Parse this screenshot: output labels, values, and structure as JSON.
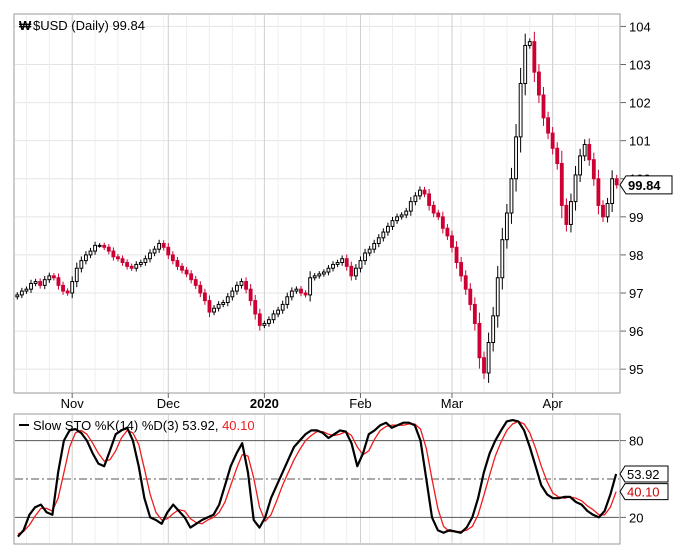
{
  "chart_data": [
    {
      "type": "candlestick",
      "symbol_label": "$USD (Daily) 99.84",
      "last_value": 99.84,
      "last_value_label": "99.84",
      "ylim": [
        94.4,
        104.3
      ],
      "y_ticks": [
        95,
        96,
        97,
        98,
        99,
        100,
        101,
        102,
        103,
        104
      ],
      "x_tick_labels": [
        "Nov",
        "Dec",
        "2020",
        "Feb",
        "Mar",
        "Apr"
      ],
      "x_tick_day_index": [
        12,
        33,
        54,
        75,
        95,
        117
      ],
      "up_color": "#000000",
      "down_color": "#cc0033",
      "closes": [
        96.95,
        97.05,
        97.1,
        97.25,
        97.3,
        97.2,
        97.35,
        97.45,
        97.4,
        97.2,
        97.05,
        97.0,
        97.3,
        97.65,
        97.85,
        98.0,
        98.1,
        98.25,
        98.25,
        98.2,
        98.1,
        97.95,
        97.9,
        97.8,
        97.7,
        97.65,
        97.75,
        97.8,
        97.9,
        98.05,
        98.15,
        98.3,
        98.2,
        98.0,
        97.85,
        97.7,
        97.6,
        97.5,
        97.35,
        97.2,
        97.0,
        96.8,
        96.5,
        96.6,
        96.7,
        96.75,
        96.9,
        97.05,
        97.2,
        97.3,
        97.1,
        96.8,
        96.45,
        96.15,
        96.2,
        96.3,
        96.45,
        96.55,
        96.7,
        96.9,
        97.05,
        97.1,
        97.0,
        96.95,
        97.4,
        97.45,
        97.5,
        97.55,
        97.65,
        97.75,
        97.8,
        97.9,
        97.7,
        97.45,
        97.65,
        97.85,
        98.05,
        98.15,
        98.3,
        98.45,
        98.6,
        98.75,
        98.9,
        99.0,
        99.05,
        99.15,
        99.4,
        99.55,
        99.7,
        99.6,
        99.3,
        99.1,
        99.0,
        98.7,
        98.5,
        98.2,
        97.8,
        97.45,
        97.1,
        96.7,
        96.2,
        95.3,
        94.9,
        95.7,
        96.4,
        97.4,
        98.4,
        99.1,
        100.0,
        101.1,
        102.5,
        103.5,
        103.6,
        102.8,
        102.2,
        101.6,
        101.2,
        100.8,
        100.4,
        99.3,
        98.8,
        99.4,
        100.1,
        100.6,
        100.9,
        100.5,
        100.0,
        99.3,
        99.0,
        99.35,
        100.0,
        99.84
      ]
    },
    {
      "type": "line",
      "title": "Slow STO %K(14) %D(3) 53.92, 40.10",
      "title_main": "Slow STO %K(14) %D(3) 53.92, ",
      "title_d_value": "40.10",
      "ylim": [
        0,
        100
      ],
      "reference_lines": [
        80,
        50,
        20
      ],
      "y_tick_labels": [
        "80",
        "20"
      ],
      "series": [
        {
          "name": "%K",
          "color": "#000000",
          "last_label": "53.92",
          "values": [
            5,
            10,
            22,
            28,
            30,
            24,
            22,
            55,
            80,
            88,
            89,
            86,
            80,
            70,
            62,
            60,
            72,
            85,
            88,
            90,
            80,
            60,
            35,
            20,
            18,
            15,
            24,
            30,
            25,
            20,
            12,
            15,
            18,
            20,
            22,
            30,
            45,
            60,
            70,
            78,
            55,
            18,
            12,
            20,
            35,
            45,
            55,
            65,
            75,
            80,
            85,
            88,
            88,
            86,
            82,
            85,
            88,
            87,
            78,
            60,
            70,
            85,
            88,
            92,
            94,
            90,
            92,
            94,
            94,
            92,
            80,
            50,
            20,
            10,
            8,
            10,
            9,
            8,
            12,
            20,
            35,
            55,
            70,
            80,
            88,
            95,
            96,
            95,
            88,
            75,
            60,
            45,
            38,
            35,
            35,
            36,
            36,
            32,
            30,
            25,
            22,
            20,
            25,
            38,
            53.92
          ]
        },
        {
          "name": "%D",
          "color": "#ee1c1c",
          "last_label": "40.10",
          "values": [
            7,
            9,
            14,
            21,
            27,
            27,
            25,
            35,
            55,
            75,
            86,
            88,
            85,
            78,
            70,
            64,
            65,
            72,
            82,
            88,
            86,
            77,
            58,
            38,
            24,
            18,
            19,
            23,
            26,
            25,
            19,
            16,
            15,
            18,
            20,
            24,
            32,
            45,
            58,
            69,
            68,
            51,
            28,
            17,
            22,
            33,
            45,
            55,
            65,
            73,
            80,
            84,
            87,
            87,
            85,
            84,
            85,
            87,
            84,
            75,
            69,
            72,
            81,
            88,
            91,
            92,
            92,
            92,
            93,
            93,
            89,
            74,
            50,
            27,
            13,
            9,
            9,
            9,
            10,
            13,
            22,
            37,
            53,
            68,
            79,
            88,
            93,
            95,
            93,
            86,
            74,
            60,
            48,
            39,
            36,
            35,
            36,
            35,
            33,
            29,
            26,
            22,
            22,
            28,
            40.1
          ]
        }
      ]
    }
  ]
}
